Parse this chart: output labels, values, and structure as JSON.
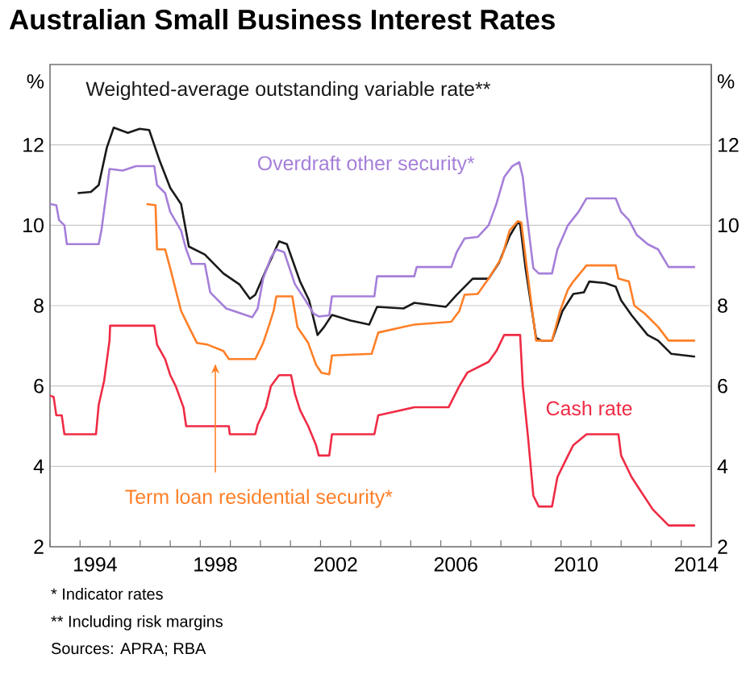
{
  "chart_data": {
    "type": "line",
    "title": "Australian Small Business Interest Rates",
    "ylabel": "%",
    "y2label": "%",
    "xlim": [
      1993,
      2015
    ],
    "ylim": [
      2,
      14
    ],
    "y2lim": [
      2,
      14
    ],
    "xticks": [
      {
        "value": 1993,
        "label": null
      },
      {
        "value": 1994,
        "label": null
      },
      {
        "value": 1995,
        "label": null
      },
      {
        "value": 1996,
        "label": null
      },
      {
        "value": 1997,
        "label": null
      },
      {
        "value": 1998,
        "label": null
      },
      {
        "value": 1999,
        "label": null
      },
      {
        "value": 2000,
        "label": null
      },
      {
        "value": 2001,
        "label": null
      },
      {
        "value": 2002,
        "label": null
      },
      {
        "value": 2003,
        "label": null
      },
      {
        "value": 2004,
        "label": null
      },
      {
        "value": 2005,
        "label": null
      },
      {
        "value": 2006,
        "label": null
      },
      {
        "value": 2007,
        "label": null
      },
      {
        "value": 2008,
        "label": null
      },
      {
        "value": 2009,
        "label": null
      },
      {
        "value": 2010,
        "label": null
      },
      {
        "value": 2011,
        "label": null
      },
      {
        "value": 2012,
        "label": null
      },
      {
        "value": 2013,
        "label": null
      },
      {
        "value": 2014,
        "label": null
      },
      {
        "value": 1994.5,
        "label": "1994"
      },
      {
        "value": 1998.5,
        "label": "1998"
      },
      {
        "value": 2002.5,
        "label": "2002"
      },
      {
        "value": 2006.5,
        "label": "2006"
      },
      {
        "value": 2010.5,
        "label": "2010"
      },
      {
        "value": 2014.5,
        "label": "2014"
      }
    ],
    "yticks": [
      2,
      4,
      6,
      8,
      10,
      12
    ],
    "y2ticks": [
      2,
      4,
      6,
      8,
      10,
      12
    ],
    "grid": "y",
    "marker": "none",
    "line_style": "solid",
    "annotations": [
      "*   Indicator rates",
      "**  Including risk margins",
      "Sources:  APRA; RBA"
    ],
    "series": [
      {
        "name": "Weighted-average outstanding variable rate**",
        "color": "#1a1a1a",
        "x": [
          1993.92,
          1994.36,
          1994.62,
          1994.89,
          1995.12,
          1995.59,
          1995.98,
          1996.3,
          1996.65,
          1997.0,
          1997.36,
          1997.62,
          1998.15,
          1998.77,
          1999.3,
          1999.65,
          1999.83,
          2000.18,
          2000.62,
          2000.88,
          2001.32,
          2001.62,
          2001.9,
          2002.12,
          2002.38,
          2003.0,
          2003.62,
          2003.88,
          2004.76,
          2005.12,
          2006.17,
          2006.53,
          2007.06,
          2007.59,
          2007.94,
          2008.29,
          2008.56,
          2008.64,
          2008.82,
          2009.17,
          2009.35,
          2009.7,
          2010.05,
          2010.41,
          2010.76,
          2010.94,
          2011.47,
          2011.82,
          2012.0,
          2012.35,
          2012.88,
          2013.23,
          2013.67,
          2014.46
        ],
        "values": [
          10.8,
          10.83,
          11.0,
          11.93,
          12.43,
          12.3,
          12.4,
          12.37,
          11.6,
          10.93,
          10.53,
          9.47,
          9.27,
          8.8,
          8.53,
          8.17,
          8.27,
          8.87,
          9.6,
          9.53,
          8.6,
          8.13,
          7.27,
          7.47,
          7.77,
          7.63,
          7.53,
          7.97,
          7.93,
          8.07,
          7.97,
          8.27,
          8.67,
          8.67,
          9.07,
          9.73,
          10.07,
          10.03,
          8.93,
          7.2,
          7.13,
          7.13,
          7.87,
          8.29,
          8.33,
          8.6,
          8.56,
          8.47,
          8.13,
          7.76,
          7.27,
          7.13,
          6.8,
          6.73
        ]
      },
      {
        "name": "Overdraft other security*",
        "color": "#a57fd9",
        "x": [
          1993.0,
          1993.21,
          1993.3,
          1993.48,
          1993.56,
          1994.62,
          1994.71,
          1994.89,
          1994.98,
          1995.42,
          1995.86,
          1996.47,
          1996.56,
          1996.83,
          1997.0,
          1997.36,
          1997.53,
          1997.71,
          1998.15,
          1998.33,
          1998.86,
          1999.38,
          1999.73,
          1999.91,
          2000.09,
          2000.35,
          2000.53,
          2000.79,
          2001.15,
          2001.5,
          2001.77,
          2001.94,
          2002.29,
          2002.38,
          2003.79,
          2003.88,
          2005.12,
          2005.2,
          2006.35,
          2006.53,
          2006.79,
          2007.23,
          2007.59,
          2007.85,
          2008.11,
          2008.38,
          2008.61,
          2008.73,
          2008.86,
          2009.08,
          2009.26,
          2009.7,
          2009.88,
          2010.23,
          2010.58,
          2010.85,
          2011.82,
          2012.0,
          2012.26,
          2012.52,
          2012.88,
          2013.23,
          2013.58,
          2014.46
        ],
        "values": [
          10.53,
          10.5,
          10.13,
          10.0,
          9.53,
          9.53,
          9.87,
          10.87,
          11.4,
          11.36,
          11.47,
          11.47,
          11.0,
          10.8,
          10.33,
          9.87,
          9.4,
          9.04,
          9.04,
          8.33,
          7.93,
          7.8,
          7.71,
          7.93,
          8.67,
          9.2,
          9.4,
          9.33,
          8.53,
          8.13,
          7.8,
          7.73,
          7.76,
          8.23,
          8.23,
          8.73,
          8.73,
          8.96,
          8.96,
          9.33,
          9.67,
          9.71,
          10.0,
          10.53,
          11.2,
          11.47,
          11.57,
          11.2,
          10.27,
          8.93,
          8.8,
          8.8,
          9.4,
          10.0,
          10.33,
          10.67,
          10.67,
          10.33,
          10.13,
          9.76,
          9.53,
          9.4,
          8.96,
          8.96
        ]
      },
      {
        "name": "Term loan residential security*",
        "color": "#ff7f27",
        "x": [
          1996.21,
          1996.51,
          1996.56,
          1996.83,
          1997.0,
          1997.18,
          1997.36,
          1997.62,
          1997.89,
          1998.24,
          1998.77,
          1998.95,
          1999.83,
          2000.09,
          2000.27,
          2000.44,
          2000.53,
          2001.06,
          2001.23,
          2001.59,
          2001.85,
          2002.03,
          2002.29,
          2002.38,
          2003.7,
          2003.92,
          2005.12,
          2006.35,
          2006.62,
          2006.79,
          2007.23,
          2007.59,
          2008.03,
          2008.29,
          2008.56,
          2008.68,
          2008.82,
          2009.0,
          2009.17,
          2009.7,
          2009.97,
          2010.23,
          2010.41,
          2010.85,
          2011.82,
          2011.91,
          2012.26,
          2012.44,
          2012.79,
          2013.23,
          2013.58,
          2014.46
        ],
        "values": [
          10.53,
          10.5,
          9.4,
          9.4,
          8.93,
          8.4,
          7.87,
          7.47,
          7.07,
          7.03,
          6.87,
          6.67,
          6.67,
          7.07,
          7.47,
          7.87,
          8.23,
          8.23,
          7.47,
          7.07,
          6.53,
          6.33,
          6.29,
          6.76,
          6.8,
          7.33,
          7.53,
          7.6,
          7.87,
          8.27,
          8.29,
          8.67,
          9.2,
          9.87,
          10.1,
          10.07,
          9.2,
          8.13,
          7.13,
          7.13,
          7.87,
          8.4,
          8.6,
          9.0,
          9.0,
          8.67,
          8.6,
          8.0,
          7.8,
          7.47,
          7.13,
          7.13
        ]
      },
      {
        "name": "Cash rate",
        "color": "#ef2b45",
        "x": [
          1993.0,
          1993.12,
          1993.21,
          1993.39,
          1993.48,
          1994.53,
          1994.62,
          1994.8,
          1994.98,
          1995.0,
          1996.47,
          1996.56,
          1996.83,
          1997.0,
          1997.18,
          1997.44,
          1997.53,
          1998.95,
          1998.98,
          1999.83,
          1999.91,
          2000.18,
          2000.35,
          2000.62,
          2001.02,
          2001.15,
          2001.32,
          2001.59,
          2001.85,
          2001.94,
          2002.29,
          2002.38,
          2003.79,
          2003.92,
          2005.12,
          2006.26,
          2006.62,
          2006.88,
          2007.59,
          2007.85,
          2008.11,
          2008.64,
          2008.73,
          2008.91,
          2009.08,
          2009.26,
          2009.7,
          2009.88,
          2010.14,
          2010.41,
          2010.85,
          2011.91,
          2012.0,
          2012.35,
          2012.7,
          2013.05,
          2013.58,
          2014.46
        ],
        "values": [
          5.76,
          5.73,
          5.27,
          5.27,
          4.8,
          4.8,
          5.53,
          6.13,
          7.13,
          7.5,
          7.5,
          7.03,
          6.67,
          6.27,
          6.0,
          5.47,
          5.0,
          5.0,
          4.8,
          4.8,
          5.04,
          5.47,
          6.0,
          6.27,
          6.27,
          5.8,
          5.4,
          5.0,
          4.53,
          4.27,
          4.27,
          4.8,
          4.8,
          5.27,
          5.47,
          5.47,
          6.0,
          6.33,
          6.6,
          6.87,
          7.27,
          7.27,
          6.0,
          4.67,
          3.27,
          3.0,
          3.0,
          3.73,
          4.13,
          4.53,
          4.8,
          4.8,
          4.27,
          3.73,
          3.33,
          2.93,
          2.53,
          2.53
        ]
      }
    ]
  }
}
